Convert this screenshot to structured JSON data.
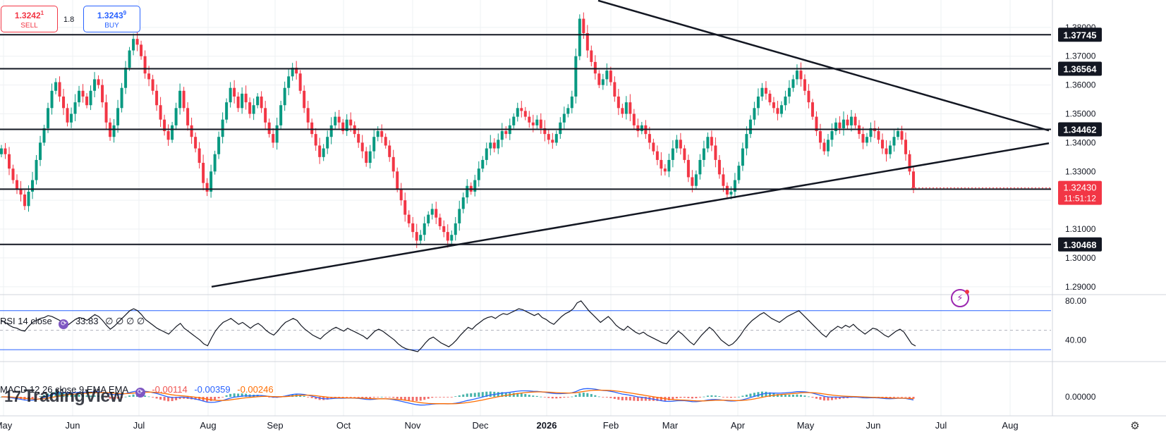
{
  "trade": {
    "sell_price": "1.3242",
    "sell_sup": "1",
    "sell_label": "SELL",
    "buy_price": "1.3243",
    "buy_sup": "9",
    "buy_label": "BUY",
    "spread": "1.8"
  },
  "brand": {
    "watermark": "TradingView"
  },
  "chart_data": {
    "type": "candlestick",
    "price_axis": {
      "ticks": [
        "1.38000",
        "1.37000",
        "1.36000",
        "1.35000",
        "1.34000",
        "1.33000",
        "1.32000",
        "1.31000",
        "1.30000",
        "1.29000"
      ],
      "tick_values": [
        1.38,
        1.37,
        1.36,
        1.35,
        1.34,
        1.33,
        1.32,
        1.31,
        1.3,
        1.29
      ]
    },
    "time_axis": [
      "May",
      "Jun",
      "Jul",
      "Aug",
      "Sep",
      "Oct",
      "Nov",
      "Dec",
      "2026",
      "Feb",
      "Mar",
      "Apr",
      "May",
      "Jun",
      "Jul",
      "Aug"
    ],
    "horizontal_levels": [
      {
        "value": 1.37745,
        "label": "1.37745"
      },
      {
        "value": 1.36564,
        "label": "1.36564"
      },
      {
        "value": 1.34462,
        "label": "1.34462"
      },
      {
        "value": 1.32385,
        "label": "1.32385"
      },
      {
        "value": 1.30468,
        "label": "1.30468"
      }
    ],
    "current_price": {
      "value": 1.3243,
      "label": "1.32430",
      "countdown": "11:51:12"
    },
    "trendlines": [
      {
        "from": {
          "month": "Aug",
          "value": 1.29
        },
        "to": {
          "month": "Aug 2026",
          "value": 1.34
        }
      },
      {
        "from": {
          "month": "Feb",
          "value": 1.384
        },
        "to": {
          "month": "Aug 2026",
          "value": 1.3445
        }
      }
    ],
    "ohlc_closes": [
      1.338,
      1.336,
      1.331,
      1.327,
      1.324,
      1.322,
      1.318,
      1.323,
      1.327,
      1.334,
      1.34,
      1.345,
      1.352,
      1.358,
      1.361,
      1.356,
      1.352,
      1.347,
      1.35,
      1.354,
      1.358,
      1.356,
      1.353,
      1.358,
      1.362,
      1.36,
      1.354,
      1.347,
      1.342,
      1.346,
      1.352,
      1.359,
      1.366,
      1.372,
      1.376,
      1.374,
      1.37,
      1.364,
      1.362,
      1.358,
      1.353,
      1.348,
      1.344,
      1.341,
      1.346,
      1.352,
      1.358,
      1.352,
      1.346,
      1.342,
      1.338,
      1.333,
      1.326,
      1.323,
      1.33,
      1.336,
      1.342,
      1.348,
      1.354,
      1.359,
      1.356,
      1.352,
      1.357,
      1.354,
      1.35,
      1.353,
      1.356,
      1.352,
      1.347,
      1.343,
      1.34,
      1.346,
      1.353,
      1.359,
      1.363,
      1.366,
      1.364,
      1.358,
      1.352,
      1.347,
      1.343,
      1.339,
      1.335,
      1.338,
      1.342,
      1.346,
      1.349,
      1.347,
      1.344,
      1.348,
      1.346,
      1.343,
      1.34,
      1.337,
      1.333,
      1.337,
      1.342,
      1.344,
      1.342,
      1.339,
      1.335,
      1.33,
      1.324,
      1.32,
      1.315,
      1.312,
      1.309,
      1.306,
      1.308,
      1.312,
      1.315,
      1.317,
      1.314,
      1.311,
      1.309,
      1.306,
      1.308,
      1.312,
      1.317,
      1.321,
      1.325,
      1.323,
      1.327,
      1.331,
      1.334,
      1.338,
      1.34,
      1.338,
      1.341,
      1.344,
      1.343,
      1.346,
      1.349,
      1.352,
      1.351,
      1.349,
      1.347,
      1.346,
      1.348,
      1.345,
      1.343,
      1.341,
      1.34,
      1.343,
      1.347,
      1.35,
      1.352,
      1.356,
      1.37,
      1.383,
      1.378,
      1.372,
      1.368,
      1.364,
      1.36,
      1.362,
      1.365,
      1.361,
      1.356,
      1.352,
      1.35,
      1.354,
      1.35,
      1.346,
      1.344,
      1.346,
      1.343,
      1.34,
      1.337,
      1.334,
      1.331,
      1.33,
      1.334,
      1.338,
      1.341,
      1.338,
      1.334,
      1.328,
      1.325,
      1.329,
      1.334,
      1.338,
      1.342,
      1.339,
      1.334,
      1.329,
      1.325,
      1.322,
      1.323,
      1.327,
      1.332,
      1.338,
      1.343,
      1.348,
      1.352,
      1.356,
      1.359,
      1.357,
      1.354,
      1.352,
      1.35,
      1.353,
      1.356,
      1.359,
      1.362,
      1.365,
      1.362,
      1.358,
      1.354,
      1.349,
      1.344,
      1.34,
      1.337,
      1.341,
      1.344,
      1.347,
      1.345,
      1.348,
      1.346,
      1.349,
      1.346,
      1.343,
      1.34,
      1.342,
      1.345,
      1.344,
      1.341,
      1.338,
      1.336,
      1.339,
      1.342,
      1.344,
      1.341,
      1.336,
      1.33,
      1.3243
    ]
  },
  "indicators": {
    "rsi": {
      "legend_name": "RSI 14 close",
      "legend_value": "33.83",
      "legend_extras": "∅ ∅ ∅ ∅",
      "axis_ticks": [
        "80.00",
        "40.00"
      ],
      "bands": [
        70,
        30
      ],
      "range": [
        20,
        85
      ],
      "values": [
        60,
        58,
        55,
        53,
        52,
        50,
        49,
        54,
        58,
        60,
        62,
        63,
        65,
        64,
        62,
        60,
        57,
        55,
        58,
        61,
        63,
        62,
        60,
        63,
        66,
        64,
        60,
        55,
        51,
        54,
        58,
        62,
        66,
        70,
        72,
        70,
        66,
        61,
        58,
        55,
        52,
        50,
        48,
        46,
        50,
        54,
        57,
        52,
        49,
        46,
        43,
        40,
        36,
        34,
        42,
        49,
        54,
        58,
        60,
        62,
        59,
        56,
        58,
        55,
        52,
        55,
        57,
        54,
        50,
        47,
        45,
        49,
        54,
        58,
        60,
        62,
        60,
        55,
        51,
        48,
        45,
        43,
        41,
        45,
        48,
        51,
        53,
        51,
        49,
        52,
        50,
        48,
        46,
        44,
        41,
        45,
        49,
        51,
        49,
        46,
        43,
        40,
        36,
        33,
        31,
        30,
        29,
        28,
        32,
        37,
        41,
        43,
        40,
        37,
        35,
        33,
        36,
        40,
        45,
        49,
        53,
        51,
        55,
        58,
        61,
        63,
        64,
        62,
        65,
        67,
        66,
        68,
        70,
        72,
        71,
        69,
        67,
        65,
        67,
        63,
        61,
        58,
        56,
        60,
        64,
        67,
        69,
        72,
        78,
        80,
        75,
        70,
        66,
        62,
        58,
        61,
        64,
        60,
        55,
        52,
        50,
        54,
        51,
        48,
        46,
        48,
        45,
        43,
        41,
        39,
        37,
        36,
        41,
        45,
        49,
        46,
        42,
        38,
        35,
        40,
        45,
        49,
        53,
        50,
        45,
        40,
        37,
        34,
        36,
        40,
        45,
        51,
        56,
        60,
        63,
        66,
        68,
        65,
        62,
        60,
        58,
        61,
        64,
        66,
        68,
        70,
        66,
        62,
        58,
        54,
        50,
        46,
        43,
        48,
        51,
        54,
        52,
        55,
        53,
        56,
        52,
        49,
        46,
        49,
        52,
        51,
        48,
        45,
        43,
        46,
        49,
        51,
        48,
        42,
        36,
        33.83
      ]
    },
    "macd": {
      "legend_name": "MACD 12 26 close 9 EMA EMA",
      "legend_hist": "-0.00114",
      "legend_macd": "-0.00359",
      "legend_signal": "-0.00246",
      "axis_ticks": [
        "0.00000"
      ],
      "colors": {
        "hist_pos": "#26a69a",
        "hist_neg": "#ef5350",
        "macd": "#2962ff",
        "signal": "#ff6d00"
      }
    }
  },
  "colors": {
    "up": "#089981",
    "down": "#f23645",
    "level": "#131722",
    "band": "#2962ff"
  }
}
